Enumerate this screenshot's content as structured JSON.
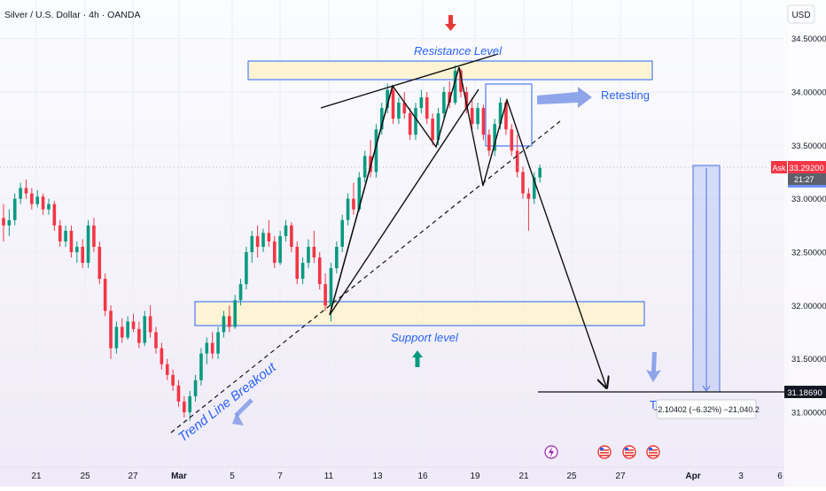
{
  "header": {
    "symbol_title": "Silver / U.S. Dollar · 4h · OANDA",
    "currency_button": "USD"
  },
  "price_axis": {
    "ticks": [
      "34.50000",
      "34.00000",
      "33.50000",
      "33.00000",
      "32.50000",
      "32.00000",
      "31.50000",
      "31.00000"
    ],
    "ask_label": "Ask",
    "current_price": "33.29200",
    "countdown": "21:27",
    "target_price": "31.18690"
  },
  "time_axis": {
    "labels": [
      "21",
      "25",
      "27",
      "Mar",
      "5",
      "7",
      "11",
      "13",
      "16",
      "19",
      "21",
      "25",
      "27",
      "Apr",
      "3",
      "6"
    ]
  },
  "annotations": {
    "resistance": "Resistance Level",
    "support": "Support level",
    "retesting": "Retesting",
    "trendline_breakout": "Trend Line Breakout",
    "target_partial": "Ta",
    "measure_readout": "−2.10402 (−6.32%) −21,040.2"
  },
  "colors": {
    "up": "#089981",
    "down": "#f23645",
    "accent": "#2962ff",
    "zone_fill": "#fff3cc",
    "measure_fill": "#b7c7f4"
  },
  "chart_data": {
    "type": "candlestick",
    "symbol": "XAGUSD",
    "timeframe": "4h",
    "ylim": [
      30.85,
      34.62
    ],
    "x_ticks": [
      "21",
      "25",
      "27",
      "Mar",
      "5",
      "7",
      "11",
      "13",
      "16",
      "19",
      "21",
      "25",
      "27",
      "Apr",
      "3",
      "6"
    ],
    "last_price": 33.292,
    "target": 31.1869,
    "measure": {
      "change": -2.10402,
      "change_pct": -6.32,
      "ticks": -21040.2
    },
    "zones": [
      {
        "name": "Resistance Level",
        "from": 34.05,
        "to": 34.28
      },
      {
        "name": "Support level",
        "from": 31.82,
        "to": 32.04
      }
    ],
    "ohlc": [
      [
        32.82,
        32.95,
        32.6,
        32.75
      ],
      [
        32.75,
        32.9,
        32.65,
        32.8
      ],
      [
        32.8,
        33.05,
        32.75,
        33.0
      ],
      [
        33.0,
        33.15,
        32.95,
        33.1
      ],
      [
        33.1,
        33.18,
        33.0,
        33.05
      ],
      [
        33.05,
        33.1,
        32.9,
        32.95
      ],
      [
        32.95,
        33.08,
        32.92,
        33.02
      ],
      [
        33.02,
        33.05,
        32.85,
        32.9
      ],
      [
        32.9,
        33.0,
        32.85,
        32.95
      ],
      [
        32.95,
        32.98,
        32.7,
        32.75
      ],
      [
        32.75,
        32.8,
        32.55,
        32.6
      ],
      [
        32.6,
        32.75,
        32.55,
        32.7
      ],
      [
        32.7,
        32.75,
        32.45,
        32.5
      ],
      [
        32.5,
        32.6,
        32.4,
        32.55
      ],
      [
        32.55,
        32.62,
        32.35,
        32.4
      ],
      [
        32.4,
        32.8,
        32.35,
        32.75
      ],
      [
        32.75,
        32.82,
        32.5,
        32.55
      ],
      [
        32.55,
        32.6,
        32.2,
        32.25
      ],
      [
        32.25,
        32.3,
        31.9,
        31.95
      ],
      [
        31.95,
        32.0,
        31.5,
        31.6
      ],
      [
        31.6,
        31.85,
        31.55,
        31.8
      ],
      [
        31.8,
        31.88,
        31.65,
        31.7
      ],
      [
        31.7,
        31.9,
        31.68,
        31.85
      ],
      [
        31.85,
        31.92,
        31.75,
        31.78
      ],
      [
        31.78,
        31.85,
        31.6,
        31.65
      ],
      [
        31.65,
        31.95,
        31.62,
        31.9
      ],
      [
        31.9,
        32.0,
        31.7,
        31.75
      ],
      [
        31.75,
        31.8,
        31.55,
        31.6
      ],
      [
        31.6,
        31.65,
        31.4,
        31.45
      ],
      [
        31.45,
        31.5,
        31.3,
        31.35
      ],
      [
        31.35,
        31.4,
        31.2,
        31.25
      ],
      [
        31.25,
        31.3,
        31.05,
        31.1
      ],
      [
        31.1,
        31.15,
        30.95,
        31.0
      ],
      [
        31.0,
        31.2,
        30.92,
        31.15
      ],
      [
        31.15,
        31.35,
        31.1,
        31.3
      ],
      [
        31.3,
        31.6,
        31.25,
        31.55
      ],
      [
        31.55,
        31.7,
        31.45,
        31.65
      ],
      [
        31.65,
        31.75,
        31.5,
        31.55
      ],
      [
        31.55,
        31.8,
        31.5,
        31.75
      ],
      [
        31.75,
        31.95,
        31.7,
        31.9
      ],
      [
        31.9,
        32.0,
        31.75,
        31.8
      ],
      [
        31.8,
        32.1,
        31.78,
        32.05
      ],
      [
        32.05,
        32.25,
        32.0,
        32.2
      ],
      [
        32.2,
        32.55,
        32.15,
        32.5
      ],
      [
        32.5,
        32.7,
        32.4,
        32.65
      ],
      [
        32.65,
        32.75,
        32.45,
        32.55
      ],
      [
        32.55,
        32.72,
        32.5,
        32.68
      ],
      [
        32.68,
        32.8,
        32.55,
        32.6
      ],
      [
        32.6,
        32.65,
        32.35,
        32.4
      ],
      [
        32.4,
        32.7,
        32.38,
        32.65
      ],
      [
        32.65,
        32.8,
        32.6,
        32.75
      ],
      [
        32.75,
        32.78,
        32.5,
        32.55
      ],
      [
        32.55,
        32.6,
        32.2,
        32.25
      ],
      [
        32.25,
        32.45,
        32.2,
        32.4
      ],
      [
        32.4,
        32.62,
        32.35,
        32.55
      ],
      [
        32.55,
        32.7,
        32.4,
        32.45
      ],
      [
        32.45,
        32.5,
        32.15,
        32.2
      ],
      [
        32.2,
        32.3,
        31.95,
        32.0
      ],
      [
        32.0,
        32.4,
        31.85,
        32.35
      ],
      [
        32.35,
        32.6,
        32.3,
        32.55
      ],
      [
        32.55,
        32.85,
        32.5,
        32.8
      ],
      [
        32.8,
        33.05,
        32.75,
        33.0
      ],
      [
        33.0,
        33.15,
        32.85,
        32.9
      ],
      [
        32.9,
        33.25,
        32.88,
        33.2
      ],
      [
        33.2,
        33.45,
        33.15,
        33.4
      ],
      [
        33.4,
        33.55,
        33.2,
        33.25
      ],
      [
        33.25,
        33.7,
        33.2,
        33.65
      ],
      [
        33.65,
        33.9,
        33.6,
        33.85
      ],
      [
        33.85,
        34.08,
        33.8,
        34.02
      ],
      [
        34.02,
        34.05,
        33.7,
        33.75
      ],
      [
        33.75,
        33.95,
        33.7,
        33.9
      ],
      [
        33.9,
        34.0,
        33.75,
        33.8
      ],
      [
        33.8,
        33.85,
        33.55,
        33.6
      ],
      [
        33.6,
        33.9,
        33.55,
        33.85
      ],
      [
        33.85,
        34.02,
        33.8,
        33.95
      ],
      [
        33.95,
        34.0,
        33.7,
        33.75
      ],
      [
        33.75,
        33.8,
        33.5,
        33.55
      ],
      [
        33.55,
        33.85,
        33.5,
        33.8
      ],
      [
        33.8,
        34.05,
        33.75,
        34.0
      ],
      [
        34.0,
        34.1,
        33.85,
        33.9
      ],
      [
        33.9,
        34.25,
        33.88,
        34.2
      ],
      [
        34.2,
        34.22,
        33.95,
        34.0
      ],
      [
        34.0,
        34.05,
        33.8,
        33.85
      ],
      [
        33.85,
        33.95,
        33.65,
        33.7
      ],
      [
        33.7,
        33.9,
        33.65,
        33.85
      ],
      [
        33.85,
        33.88,
        33.55,
        33.6
      ],
      [
        33.6,
        33.65,
        33.4,
        33.45
      ],
      [
        33.45,
        33.75,
        33.4,
        33.7
      ],
      [
        33.7,
        33.95,
        33.65,
        33.9
      ],
      [
        33.9,
        33.92,
        33.6,
        33.65
      ],
      [
        33.65,
        33.7,
        33.4,
        33.45
      ],
      [
        33.45,
        33.6,
        33.2,
        33.25
      ],
      [
        33.25,
        33.3,
        33.0,
        33.05
      ],
      [
        33.05,
        33.1,
        32.7,
        33.0
      ],
      [
        33.0,
        33.25,
        32.95,
        33.2
      ],
      [
        33.2,
        33.32,
        33.15,
        33.29
      ]
    ]
  }
}
